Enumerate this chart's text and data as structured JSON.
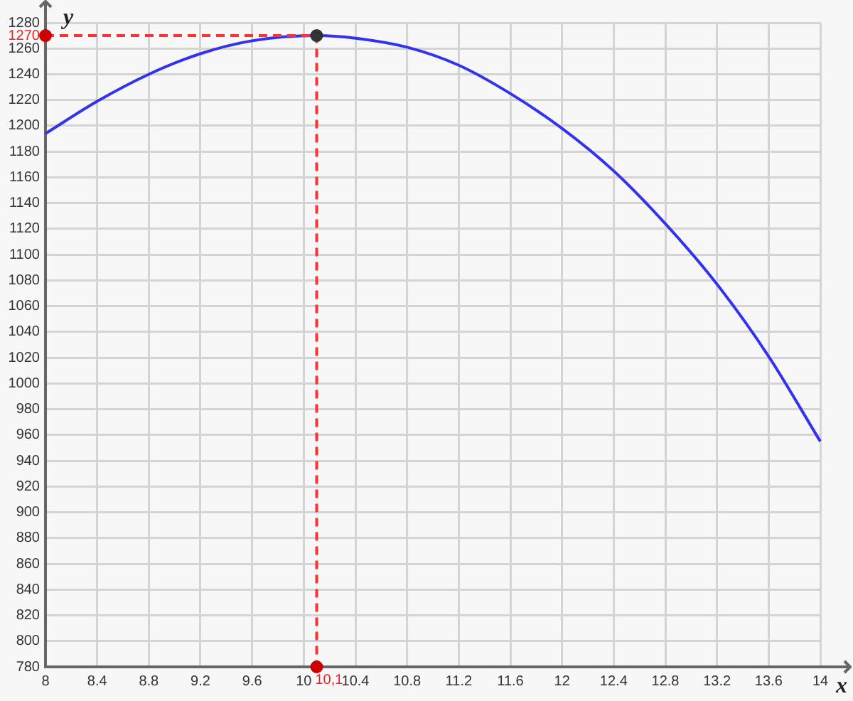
{
  "chart_data": {
    "type": "line",
    "xlabel": "x",
    "ylabel": "y",
    "xlim": [
      8,
      14
    ],
    "xticks": [
      8,
      8.4,
      8.8,
      9.2,
      9.6,
      10,
      10.4,
      10.8,
      11.2,
      11.6,
      12,
      12.4,
      12.8,
      13.2,
      13.6,
      14
    ],
    "ylim": [
      780,
      1280
    ],
    "yticks": [
      780,
      800,
      820,
      840,
      860,
      880,
      900,
      920,
      940,
      960,
      980,
      1000,
      1020,
      1040,
      1060,
      1080,
      1100,
      1120,
      1140,
      1160,
      1180,
      1200,
      1220,
      1240,
      1260,
      1280
    ],
    "grid": true,
    "series": [
      {
        "type": "line",
        "color": "#3333ee",
        "marker": "none",
        "x": [
          8,
          8.4,
          8.8,
          9.2,
          9.6,
          10.1,
          10.4,
          10.8,
          11.2,
          11.6,
          12,
          12.4,
          12.8,
          13.2,
          13.6,
          14
        ],
        "values": [
          1194,
          1219,
          1240,
          1256,
          1266,
          1270,
          1268,
          1261,
          1247,
          1225,
          1198,
          1165,
          1124,
          1077,
          1021,
          955
        ]
      },
      {
        "type": "line",
        "color": "#ff3333",
        "marker": "none",
        "line_style": "dashed",
        "x": [
          8,
          10.1,
          10.1
        ],
        "values": [
          1270,
          1270,
          780
        ]
      },
      {
        "type": "scatter",
        "color": "#333333",
        "marker": "circle",
        "x": [
          10.1
        ],
        "values": [
          1270
        ]
      },
      {
        "type": "scatter",
        "color": "#cc0000",
        "marker": "circle",
        "x": [
          8,
          10.1
        ],
        "values": [
          1270,
          780
        ]
      }
    ],
    "annotations": [
      {
        "text": "1270",
        "x": 8,
        "y": 1270
      },
      {
        "text": "10,1",
        "x": 10.1,
        "y": 780
      }
    ]
  }
}
